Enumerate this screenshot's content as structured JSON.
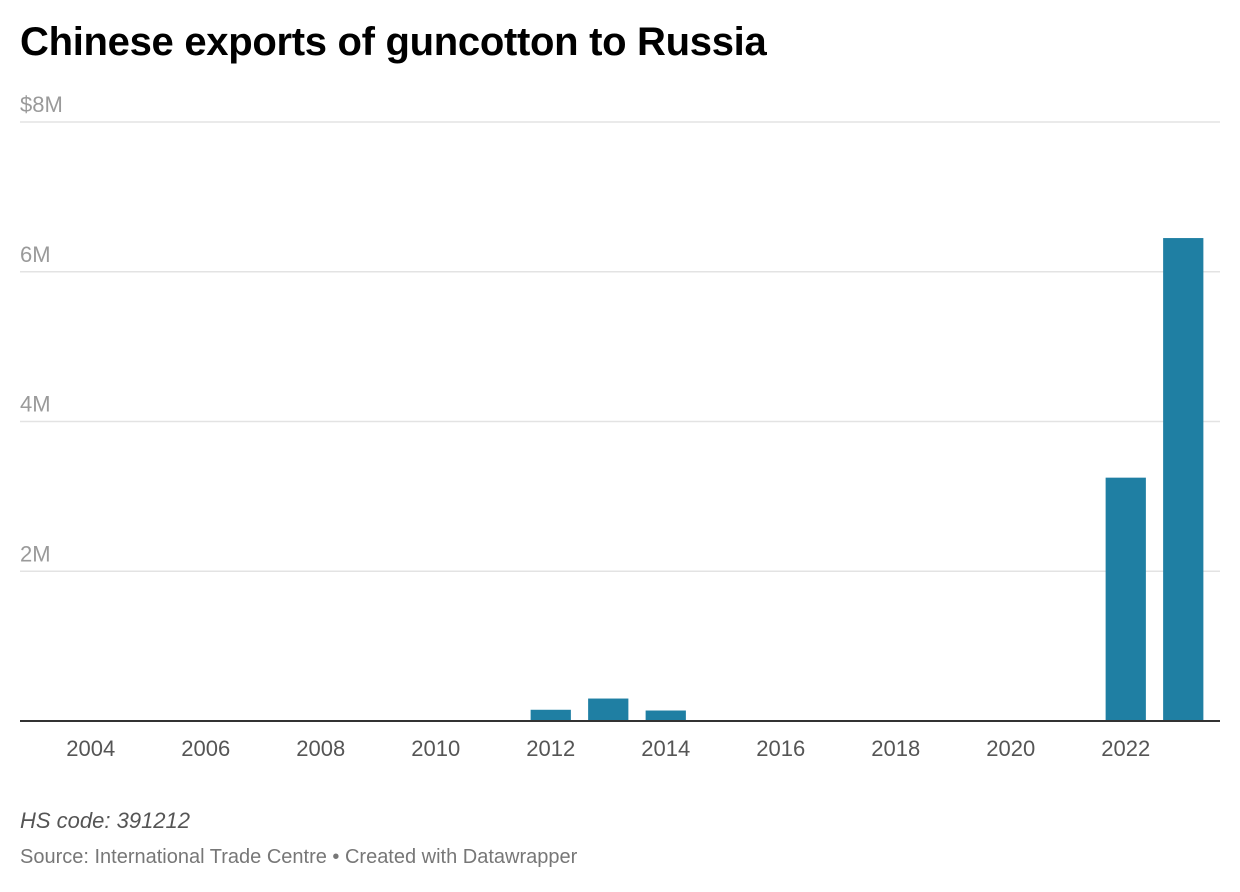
{
  "chart_data": {
    "type": "bar",
    "title": "Chinese exports of guncotton to Russia",
    "categories": [
      "2004",
      "2005",
      "2006",
      "2007",
      "2008",
      "2009",
      "2010",
      "2011",
      "2012",
      "2013",
      "2014",
      "2015",
      "2016",
      "2017",
      "2018",
      "2019",
      "2020",
      "2021",
      "2022",
      "2023"
    ],
    "values": [
      0,
      0,
      0,
      0,
      0,
      0,
      0,
      0,
      150000,
      300000,
      140000,
      0,
      0,
      0,
      0,
      0,
      0,
      0,
      3250000,
      6450000
    ],
    "x_tick_labels": [
      "2004",
      "2006",
      "2008",
      "2010",
      "2012",
      "2014",
      "2016",
      "2018",
      "2020",
      "2022"
    ],
    "y_tick_values": [
      2000000,
      4000000,
      6000000,
      8000000
    ],
    "y_tick_labels": [
      "2M",
      "4M",
      "6M",
      "$8M"
    ],
    "ylim": [
      0,
      8000000
    ],
    "xlabel": "",
    "ylabel": "",
    "bar_color": "#1f7fa3",
    "grid": true,
    "legend": "none"
  },
  "footer": {
    "note": "HS code: 391212",
    "source": "Source: International Trade Centre • Created with Datawrapper"
  }
}
